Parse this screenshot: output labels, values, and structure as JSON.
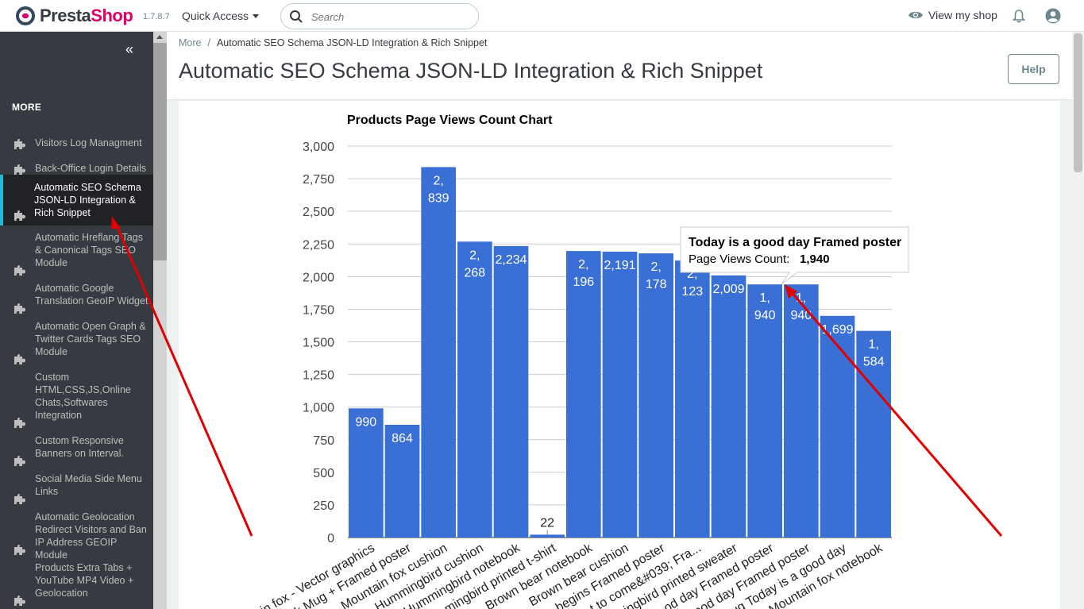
{
  "header": {
    "logo_main": "Presta",
    "logo_accent": "Shop",
    "version": "1.7.8.7",
    "quick_access": "Quick Access",
    "search_placeholder": "Search",
    "view_shop": "View my shop"
  },
  "sidebar": {
    "collapse": "«",
    "section_title": "MORE",
    "items": [
      {
        "label": "Visitors Log Managment"
      },
      {
        "label": "Back-Office Login Details"
      },
      {
        "label": "Automatic SEO Schema JSON-LD Integration & Rich Snippet"
      },
      {
        "label": "Automatic Hreflang Tags & Canonical Tags SEO Module"
      },
      {
        "label": "Automatic Google Translation GeoIP Widget"
      },
      {
        "label": "Automatic Open Graph & Twitter Cards Tags SEO Module"
      },
      {
        "label": "Custom HTML,CSS,JS,Online Chats,Softwares Integration"
      },
      {
        "label": "Custom Responsive Banners on Interval."
      },
      {
        "label": "Social Media Side Menu Links"
      },
      {
        "label": "Automatic Geolocation Redirect Visitors and Ban IP Address GEOIP Module"
      },
      {
        "label": "Products Extra Tabs + YouTube MP4 Video + Geolocation"
      }
    ]
  },
  "breadcrumb": {
    "parent": "More",
    "separator": "/",
    "current": "Automatic SEO Schema JSON-LD Integration & Rich Snippet"
  },
  "page_title": "Automatic SEO Schema JSON-LD Integration & Rich Snippet",
  "help_label": "Help",
  "colors": {
    "bar": "#3a6fd6",
    "accent": "#25b9d7",
    "sidebar_bg": "#363a41",
    "brand": "#df0067"
  },
  "chart_data": {
    "type": "bar",
    "title": "Products Page Views Count Chart",
    "ylim": [
      0,
      3000
    ],
    "yticks": [
      "0",
      "250",
      "500",
      "750",
      "1,000",
      "1,250",
      "1,500",
      "1,750",
      "2,000",
      "2,250",
      "2,500",
      "2,750",
      "3,000"
    ],
    "categories": [
      "in fox - Vector graphics",
      "k Mug + Framed poster",
      "Mountain fox cushion",
      "Hummingbird cushion",
      "Hummingbird notebook",
      "mingbird printed t-shirt",
      "Brown bear notebook",
      "Brown bear cushion",
      "begins Framed poster",
      "t to come&#039; Fra...",
      "ingbird printed sweater",
      "od day Framed poster",
      "ood day Framed poster",
      "ug Today is a good day",
      "Mountain fox notebook"
    ],
    "values": [
      990,
      864,
      2839,
      2268,
      2234,
      22,
      2196,
      2191,
      2178,
      2123,
      2009,
      1940,
      1940,
      1699,
      1584
    ],
    "labels": [
      [
        "990"
      ],
      [
        "864"
      ],
      [
        "2,",
        "839"
      ],
      [
        "2,",
        "268"
      ],
      [
        "2,234"
      ],
      [
        "22"
      ],
      [
        "2,",
        "196"
      ],
      [
        "2,191"
      ],
      [
        "2,",
        "178"
      ],
      [
        "2,",
        "123"
      ],
      [
        "2,009"
      ],
      [
        "1,",
        "940"
      ],
      [
        "1,",
        "940"
      ],
      [
        "1,699"
      ],
      [
        "1,",
        "584"
      ]
    ],
    "tooltip": {
      "title": "Today is a good day Framed poster",
      "label": "Page Views Count:",
      "value": "1,940"
    }
  }
}
